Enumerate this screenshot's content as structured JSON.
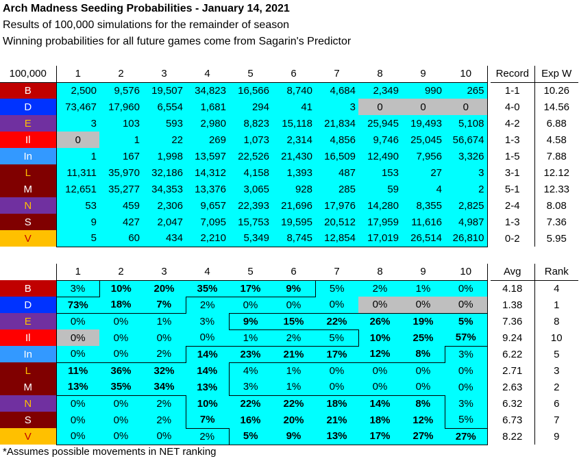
{
  "title": "Arch Madness Seeding Probabilities - January 14, 2021",
  "subtitle1": "Results of 100,000 simulations for the remainder of season",
  "subtitle2": "Winning probabilities for all future games come from Sagarin's Predictor",
  "footnote": "*Assumes possible movements in NET ranking",
  "table1": {
    "corner": "100,000",
    "seeds": [
      "1",
      "2",
      "3",
      "4",
      "5",
      "6",
      "7",
      "8",
      "9",
      "10"
    ],
    "record_header": "Record",
    "expw_header": "Exp W",
    "rows": [
      {
        "team": "B",
        "bg": "#C00000",
        "fg": "#FFFFFF",
        "cells": [
          "2,500",
          "9,576",
          "19,507",
          "34,823",
          "16,566",
          "8,740",
          "4,684",
          "2,349",
          "990",
          "265"
        ],
        "record": "1-1",
        "expw": "10.26"
      },
      {
        "team": "D",
        "bg": "#0033FF",
        "fg": "#FFFFFF",
        "cells": [
          "73,467",
          "17,960",
          "6,554",
          "1,681",
          "294",
          "41",
          "3",
          "0",
          "0",
          "0"
        ],
        "record": "4-0",
        "expw": "14.56"
      },
      {
        "team": "E",
        "bg": "#7030A0",
        "fg": "#FFC000",
        "cells": [
          "3",
          "103",
          "593",
          "2,980",
          "8,823",
          "15,118",
          "21,834",
          "25,945",
          "19,493",
          "5,108"
        ],
        "record": "4-2",
        "expw": "6.88"
      },
      {
        "team": "Il",
        "bg": "#FF0000",
        "fg": "#FFFFFF",
        "cells": [
          "0",
          "1",
          "22",
          "269",
          "1,073",
          "2,314",
          "4,856",
          "9,746",
          "25,045",
          "56,674"
        ],
        "record": "1-3",
        "expw": "4.58"
      },
      {
        "team": "In",
        "bg": "#3399FF",
        "fg": "#FFFFFF",
        "cells": [
          "1",
          "167",
          "1,998",
          "13,597",
          "22,526",
          "21,430",
          "16,509",
          "12,490",
          "7,956",
          "3,326"
        ],
        "record": "1-5",
        "expw": "7.88"
      },
      {
        "team": "L",
        "bg": "#800000",
        "fg": "#FFC000",
        "cells": [
          "11,311",
          "35,970",
          "32,186",
          "14,312",
          "4,158",
          "1,393",
          "487",
          "153",
          "27",
          "3"
        ],
        "record": "3-1",
        "expw": "12.12"
      },
      {
        "team": "M",
        "bg": "#800000",
        "fg": "#FFFFFF",
        "cells": [
          "12,651",
          "35,277",
          "34,353",
          "13,376",
          "3,065",
          "928",
          "285",
          "59",
          "4",
          "2"
        ],
        "record": "5-1",
        "expw": "12.33"
      },
      {
        "team": "N",
        "bg": "#7030A0",
        "fg": "#FFC000",
        "cells": [
          "53",
          "459",
          "2,306",
          "9,657",
          "22,393",
          "21,696",
          "17,976",
          "14,280",
          "8,355",
          "2,825"
        ],
        "record": "2-4",
        "expw": "8.08"
      },
      {
        "team": "S",
        "bg": "#800000",
        "fg": "#FFFFFF",
        "cells": [
          "9",
          "427",
          "2,047",
          "7,095",
          "15,753",
          "19,595",
          "20,512",
          "17,959",
          "11,616",
          "4,987"
        ],
        "record": "1-3",
        "expw": "7.36"
      },
      {
        "team": "V",
        "bg": "#FFC000",
        "fg": "#C00000",
        "cells": [
          "5",
          "60",
          "434",
          "2,210",
          "5,349",
          "8,745",
          "12,854",
          "17,019",
          "26,514",
          "26,810"
        ],
        "record": "0-2",
        "expw": "5.95"
      }
    ]
  },
  "table2": {
    "seeds": [
      "1",
      "2",
      "3",
      "4",
      "5",
      "6",
      "7",
      "8",
      "9",
      "10"
    ],
    "avg_header": "Avg",
    "rank_header": "Rank",
    "rows": [
      {
        "team": "B",
        "cells": [
          "3%",
          "10%",
          "20%",
          "35%",
          "17%",
          "9%",
          "5%",
          "2%",
          "1%",
          "0%"
        ],
        "avg": "4.18",
        "rank": "4"
      },
      {
        "team": "D",
        "cells": [
          "73%",
          "18%",
          "7%",
          "2%",
          "0%",
          "0%",
          "0%",
          "0%",
          "0%",
          "0%"
        ],
        "avg": "1.38",
        "rank": "1"
      },
      {
        "team": "E",
        "cells": [
          "0%",
          "0%",
          "1%",
          "3%",
          "9%",
          "15%",
          "22%",
          "26%",
          "19%",
          "5%"
        ],
        "avg": "7.36",
        "rank": "8"
      },
      {
        "team": "Il",
        "cells": [
          "0%",
          "0%",
          "0%",
          "0%",
          "1%",
          "2%",
          "5%",
          "10%",
          "25%",
          "57%"
        ],
        "avg": "9.24",
        "rank": "10"
      },
      {
        "team": "In",
        "cells": [
          "0%",
          "0%",
          "2%",
          "14%",
          "23%",
          "21%",
          "17%",
          "12%",
          "8%",
          "3%"
        ],
        "avg": "6.22",
        "rank": "5"
      },
      {
        "team": "L",
        "cells": [
          "11%",
          "36%",
          "32%",
          "14%",
          "4%",
          "1%",
          "0%",
          "0%",
          "0%",
          "0%"
        ],
        "avg": "2.71",
        "rank": "3"
      },
      {
        "team": "M",
        "cells": [
          "13%",
          "35%",
          "34%",
          "13%",
          "3%",
          "1%",
          "0%",
          "0%",
          "0%",
          "0%"
        ],
        "avg": "2.63",
        "rank": "2"
      },
      {
        "team": "N",
        "cells": [
          "0%",
          "0%",
          "2%",
          "10%",
          "22%",
          "22%",
          "18%",
          "14%",
          "8%",
          "3%"
        ],
        "avg": "6.32",
        "rank": "6"
      },
      {
        "team": "S",
        "cells": [
          "0%",
          "0%",
          "2%",
          "7%",
          "16%",
          "20%",
          "21%",
          "18%",
          "12%",
          "5%"
        ],
        "avg": "6.73",
        "rank": "7"
      },
      {
        "team": "V",
        "cells": [
          "0%",
          "0%",
          "0%",
          "2%",
          "5%",
          "9%",
          "13%",
          "17%",
          "27%",
          "27%"
        ],
        "avg": "8.22",
        "rank": "9"
      }
    ]
  }
}
